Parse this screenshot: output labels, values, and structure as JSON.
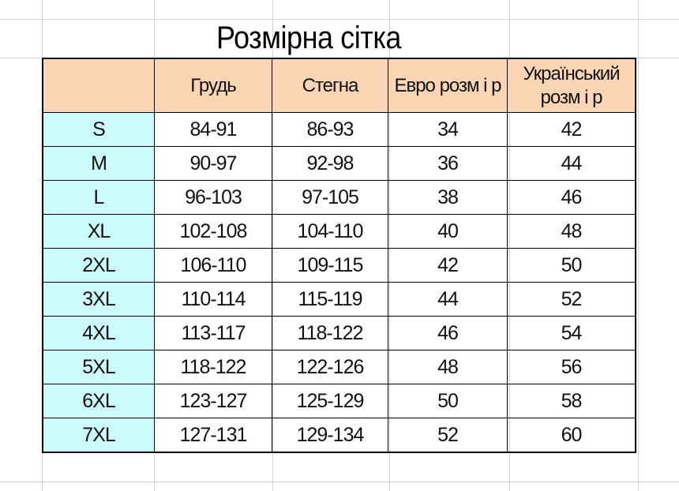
{
  "title": "Розмірна сітка",
  "colors": {
    "header_bg": "#fcd5b4",
    "size_column_bg": "#ccfbfb"
  },
  "headers": [
    "",
    "Грудь",
    "Стегна",
    "Евро розм і р",
    "Український розм і р"
  ],
  "rows": [
    [
      "S",
      "84-91",
      "86-93",
      "34",
      "42"
    ],
    [
      "M",
      "90-97",
      "92-98",
      "36",
      "44"
    ],
    [
      "L",
      "96-103",
      "97-105",
      "38",
      "46"
    ],
    [
      "XL",
      "102-108",
      "104-110",
      "40",
      "48"
    ],
    [
      "2XL",
      "106-110",
      "109-115",
      "42",
      "50"
    ],
    [
      "3XL",
      "110-114",
      "115-119",
      "44",
      "52"
    ],
    [
      "4XL",
      "113-117",
      "118-122",
      "46",
      "54"
    ],
    [
      "5XL",
      "118-122",
      "122-126",
      "48",
      "56"
    ],
    [
      "6XL",
      "123-127",
      "125-129",
      "50",
      "58"
    ],
    [
      "7XL",
      "127-131",
      "129-134",
      "52",
      "60"
    ]
  ]
}
